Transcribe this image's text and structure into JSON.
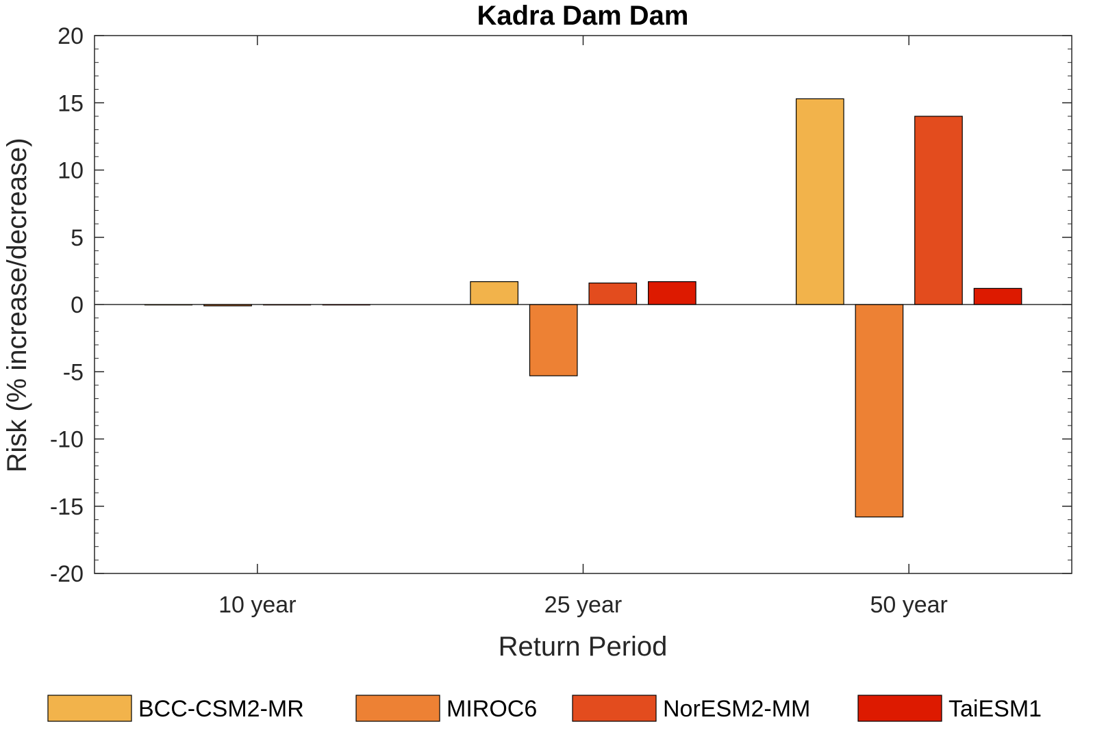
{
  "chart_data": {
    "type": "bar",
    "title": "Kadra Dam Dam",
    "xlabel": "Return Period",
    "ylabel": "Risk (% increase/decrease)",
    "categories": [
      "10 year",
      "25 year",
      "50 year"
    ],
    "ylim": [
      -20,
      20
    ],
    "yticks": [
      20,
      15,
      10,
      5,
      0,
      -5,
      -10,
      -15,
      -20
    ],
    "ytick_labels": [
      "20",
      "15",
      "10",
      "5",
      "0",
      "-5",
      "-10",
      "-15",
      "-20"
    ],
    "grid": false,
    "legend_position": "bottom",
    "series": [
      {
        "name": "BCC-CSM2-MR",
        "color": "#F2B34B",
        "values": [
          0.0,
          1.7,
          15.3
        ]
      },
      {
        "name": "MIROC6",
        "color": "#ED8134",
        "values": [
          -0.1,
          -5.3,
          -15.8
        ]
      },
      {
        "name": "NorESM2-MM",
        "color": "#E34C1E",
        "values": [
          0.0,
          1.6,
          14.0
        ]
      },
      {
        "name": "TaiESM1",
        "color": "#DD1A00",
        "values": [
          0.0,
          1.7,
          1.2
        ]
      }
    ]
  }
}
